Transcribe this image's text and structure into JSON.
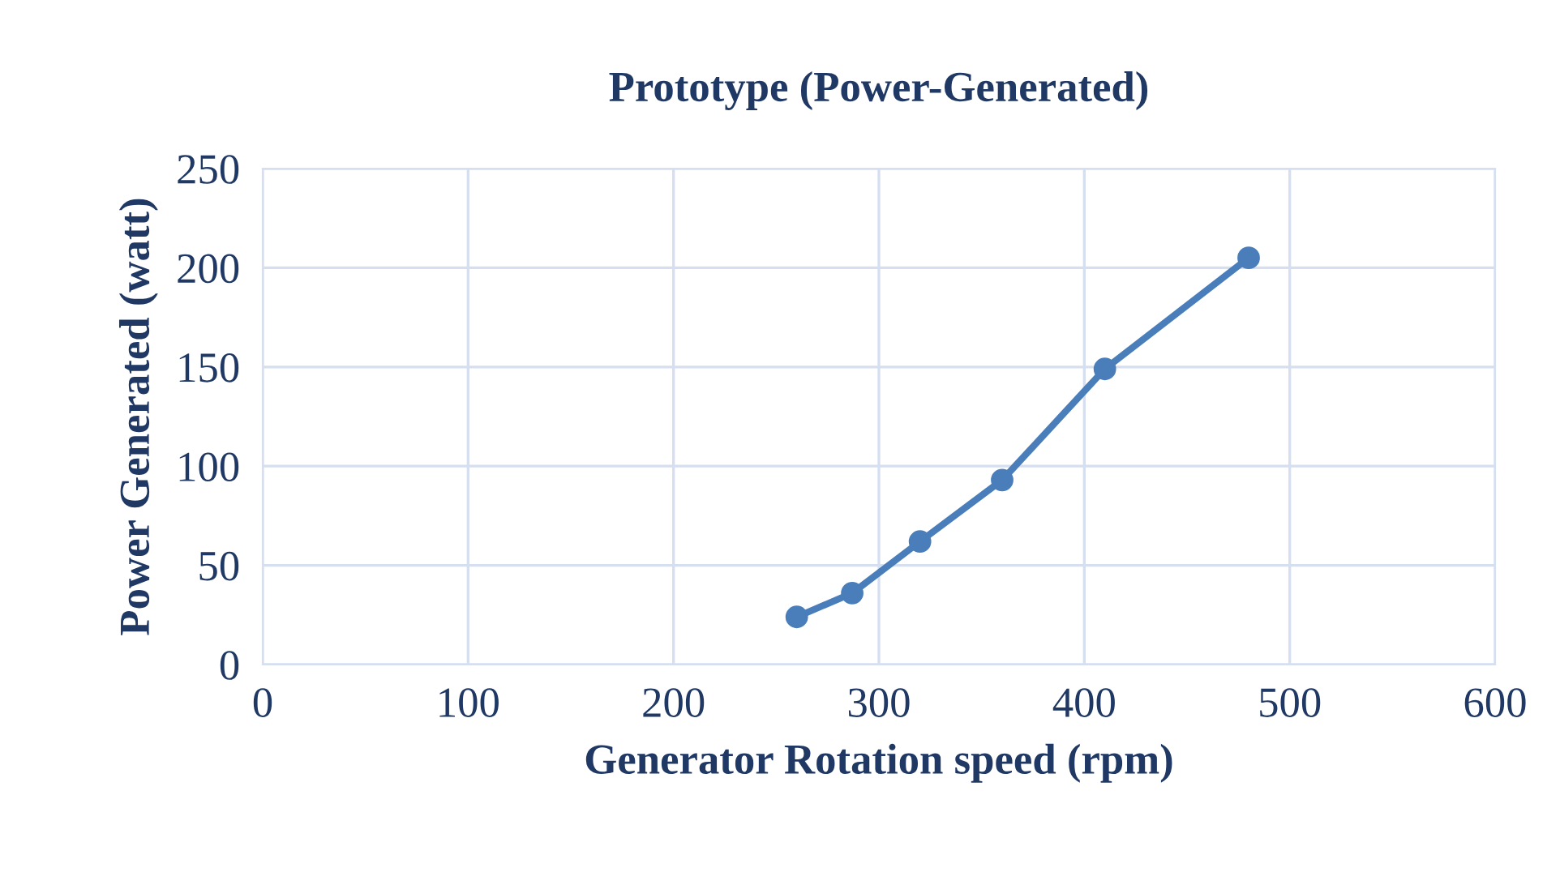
{
  "chart_data": {
    "type": "line",
    "title": "Prototype (Power-Generated)",
    "xlabel": "Generator Rotation speed (rpm)",
    "ylabel": "Power Generated (watt)",
    "x": [
      260,
      287,
      320,
      360,
      410,
      480
    ],
    "series": [
      {
        "color": "#4a7ebb",
        "values": [
          24,
          36,
          62,
          93,
          149,
          205
        ]
      }
    ],
    "xlim": [
      0,
      600
    ],
    "xticks": [
      0,
      100,
      200,
      300,
      400,
      500,
      600
    ],
    "ylim": [
      0,
      250
    ],
    "yticks": [
      0,
      50,
      100,
      150,
      200,
      250
    ],
    "grid": true,
    "marker": "circle",
    "line_style": "solid"
  }
}
